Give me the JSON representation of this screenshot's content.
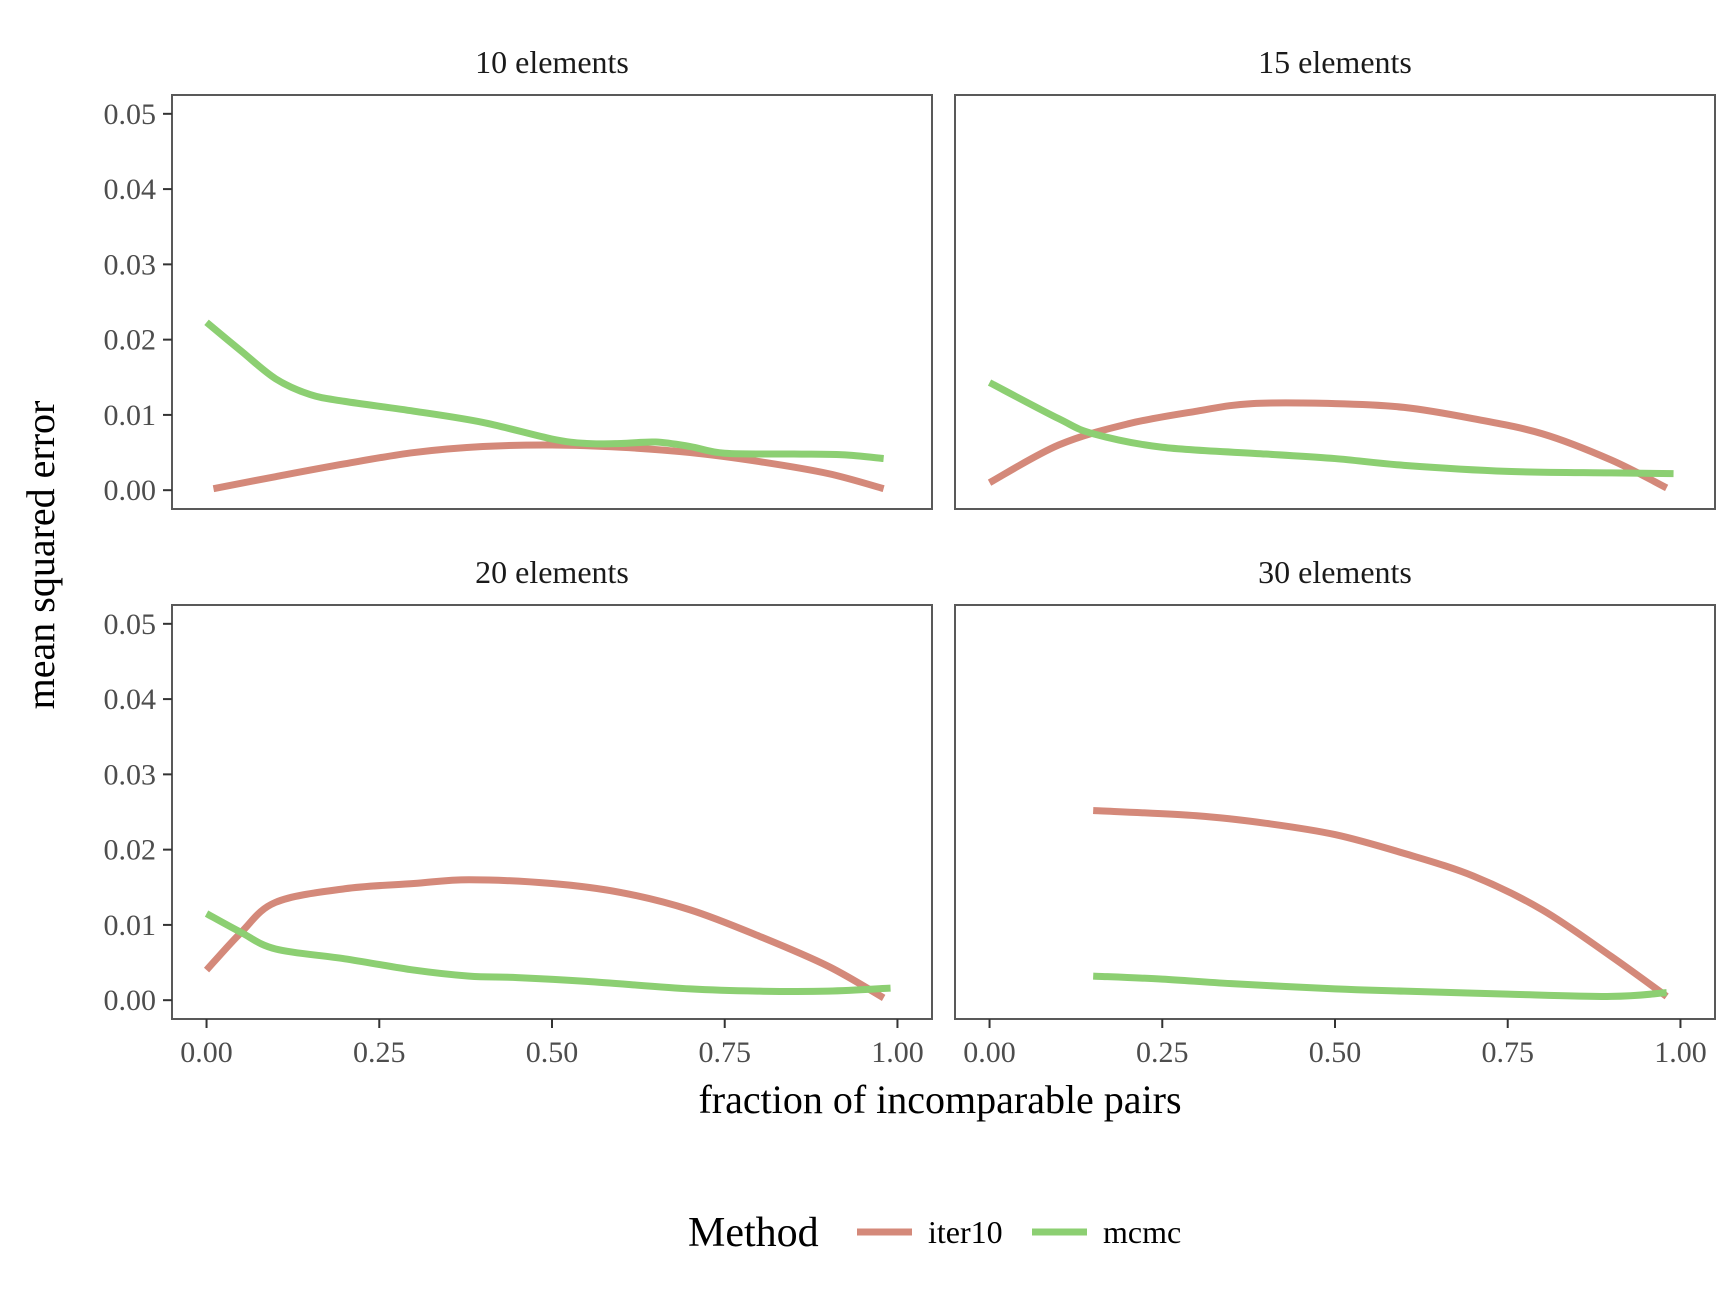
{
  "chart_data": {
    "type": "line",
    "xlabel": "fraction of incomparable pairs",
    "ylabel": "mean squared error",
    "xlim": [
      -0.05,
      1.05
    ],
    "ylim": [
      -0.0025,
      0.0525
    ],
    "xticks": [
      "0.00",
      "0.25",
      "0.50",
      "0.75",
      "1.00"
    ],
    "xtick_values": [
      0,
      0.25,
      0.5,
      0.75,
      1.0
    ],
    "yticks": [
      "0.00",
      "0.01",
      "0.02",
      "0.03",
      "0.04",
      "0.05"
    ],
    "ytick_values": [
      0,
      0.01,
      0.02,
      0.03,
      0.04,
      0.05
    ],
    "grid": false,
    "legend": {
      "title": "Method",
      "position": "bottom",
      "entries": [
        {
          "name": "iter10",
          "color": "#d4897a"
        },
        {
          "name": "mcmc",
          "color": "#8ccf72"
        }
      ]
    },
    "panels": [
      {
        "strip": "10 elements",
        "series": [
          {
            "name": "iter10",
            "points": [
              [
                0.01,
                0.0002
              ],
              [
                0.1,
                0.0018
              ],
              [
                0.2,
                0.0035
              ],
              [
                0.3,
                0.005
              ],
              [
                0.4,
                0.0058
              ],
              [
                0.5,
                0.006
              ],
              [
                0.6,
                0.0057
              ],
              [
                0.7,
                0.005
              ],
              [
                0.8,
                0.0038
              ],
              [
                0.9,
                0.0022
              ],
              [
                0.98,
                0.0002
              ]
            ]
          },
          {
            "name": "mcmc",
            "points": [
              [
                0.0,
                0.0223
              ],
              [
                0.05,
                0.0185
              ],
              [
                0.1,
                0.0148
              ],
              [
                0.15,
                0.0127
              ],
              [
                0.2,
                0.0118
              ],
              [
                0.3,
                0.0105
              ],
              [
                0.4,
                0.009
              ],
              [
                0.5,
                0.0068
              ],
              [
                0.55,
                0.0062
              ],
              [
                0.6,
                0.0062
              ],
              [
                0.65,
                0.0064
              ],
              [
                0.7,
                0.0058
              ],
              [
                0.75,
                0.0049
              ],
              [
                0.85,
                0.0048
              ],
              [
                0.92,
                0.0047
              ],
              [
                0.98,
                0.0042
              ]
            ]
          }
        ]
      },
      {
        "strip": "15 elements",
        "series": [
          {
            "name": "iter10",
            "points": [
              [
                0.0,
                0.001
              ],
              [
                0.1,
                0.006
              ],
              [
                0.2,
                0.0088
              ],
              [
                0.3,
                0.0105
              ],
              [
                0.38,
                0.0115
              ],
              [
                0.5,
                0.0115
              ],
              [
                0.6,
                0.011
              ],
              [
                0.7,
                0.0095
              ],
              [
                0.8,
                0.0075
              ],
              [
                0.9,
                0.004
              ],
              [
                0.98,
                0.0003
              ]
            ]
          },
          {
            "name": "mcmc",
            "points": [
              [
                0.0,
                0.0143
              ],
              [
                0.1,
                0.0095
              ],
              [
                0.15,
                0.0075
              ],
              [
                0.25,
                0.0057
              ],
              [
                0.4,
                0.0048
              ],
              [
                0.5,
                0.0042
              ],
              [
                0.6,
                0.0033
              ],
              [
                0.75,
                0.0025
              ],
              [
                0.9,
                0.0023
              ],
              [
                0.99,
                0.0022
              ]
            ]
          }
        ]
      },
      {
        "strip": "20 elements",
        "series": [
          {
            "name": "iter10",
            "points": [
              [
                0.0,
                0.004
              ],
              [
                0.05,
                0.009
              ],
              [
                0.1,
                0.013
              ],
              [
                0.2,
                0.0148
              ],
              [
                0.3,
                0.0155
              ],
              [
                0.38,
                0.016
              ],
              [
                0.5,
                0.0155
              ],
              [
                0.6,
                0.0143
              ],
              [
                0.7,
                0.012
              ],
              [
                0.8,
                0.0085
              ],
              [
                0.9,
                0.0045
              ],
              [
                0.98,
                0.0003
              ]
            ]
          },
          {
            "name": "mcmc",
            "points": [
              [
                0.0,
                0.0115
              ],
              [
                0.05,
                0.009
              ],
              [
                0.1,
                0.0068
              ],
              [
                0.2,
                0.0055
              ],
              [
                0.3,
                0.004
              ],
              [
                0.38,
                0.0032
              ],
              [
                0.45,
                0.003
              ],
              [
                0.55,
                0.0025
              ],
              [
                0.7,
                0.0015
              ],
              [
                0.8,
                0.0012
              ],
              [
                0.9,
                0.0012
              ],
              [
                0.99,
                0.0016
              ]
            ]
          }
        ]
      },
      {
        "strip": "30 elements",
        "series": [
          {
            "name": "iter10",
            "points": [
              [
                0.15,
                0.0252
              ],
              [
                0.3,
                0.0245
              ],
              [
                0.4,
                0.0235
              ],
              [
                0.5,
                0.022
              ],
              [
                0.6,
                0.0195
              ],
              [
                0.7,
                0.0165
              ],
              [
                0.8,
                0.012
              ],
              [
                0.9,
                0.0058
              ],
              [
                0.98,
                0.0005
              ]
            ]
          },
          {
            "name": "mcmc",
            "points": [
              [
                0.15,
                0.0032
              ],
              [
                0.25,
                0.0028
              ],
              [
                0.35,
                0.0022
              ],
              [
                0.5,
                0.0015
              ],
              [
                0.6,
                0.0012
              ],
              [
                0.75,
                0.0008
              ],
              [
                0.9,
                0.0005
              ],
              [
                0.98,
                0.001
              ]
            ]
          }
        ]
      }
    ]
  }
}
